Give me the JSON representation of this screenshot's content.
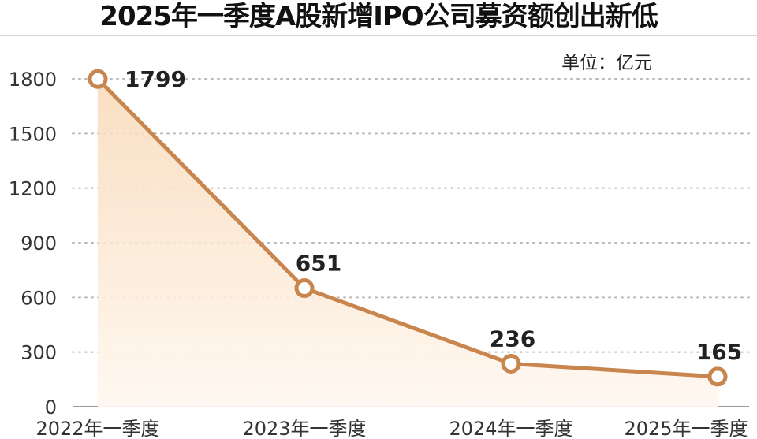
{
  "chart_data": {
    "type": "line",
    "title": "2025年一季度A股新增IPO公司募资额创出新低",
    "unit_note": "单位：亿元",
    "categories": [
      "2022年一季度",
      "2023年一季度",
      "2024年一季度",
      "2025年一季度"
    ],
    "values": [
      1799,
      651,
      236,
      165
    ],
    "data_labels": [
      "1799",
      "651",
      "236",
      "165"
    ],
    "ylim": [
      0,
      1800
    ],
    "yticks": [
      "0",
      "300",
      "600",
      "900",
      "1200",
      "1500",
      "1800"
    ],
    "grid": true,
    "colors": {
      "line": "#c8854d",
      "area_top": "#f8d9b8",
      "area_bottom": "#fff8f0"
    }
  }
}
